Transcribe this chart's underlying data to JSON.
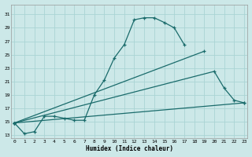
{
  "xlabel": "Humidex (Indice chaleur)",
  "background_color": "#cce8e8",
  "grid_color": "#aad4d4",
  "line_color": "#1a6b6b",
  "series": [
    {
      "x": [
        0,
        1,
        2,
        3,
        4,
        5,
        6,
        7,
        8,
        9,
        10,
        11,
        12,
        13,
        14,
        15,
        16,
        17
      ],
      "y": [
        14.8,
        13.2,
        13.5,
        15.8,
        15.8,
        15.5,
        15.2,
        15.2,
        19.0,
        21.2,
        24.5,
        26.5,
        30.2,
        30.5,
        30.5,
        29.8,
        29.0,
        26.5
      ]
    },
    {
      "x": [
        0,
        19
      ],
      "y": [
        14.8,
        25.5
      ]
    },
    {
      "x": [
        0,
        20,
        21,
        22,
        23
      ],
      "y": [
        14.8,
        22.5,
        20.0,
        18.2,
        17.8
      ]
    },
    {
      "x": [
        0,
        23
      ],
      "y": [
        14.8,
        17.8
      ]
    }
  ],
  "xlim": [
    -0.3,
    23.3
  ],
  "ylim": [
    12.5,
    32.5
  ],
  "yticks": [
    13,
    15,
    17,
    19,
    21,
    23,
    25,
    27,
    29,
    31
  ],
  "xticks": [
    0,
    1,
    2,
    3,
    4,
    5,
    6,
    7,
    8,
    9,
    10,
    11,
    12,
    13,
    14,
    15,
    16,
    17,
    18,
    19,
    20,
    21,
    22,
    23
  ]
}
